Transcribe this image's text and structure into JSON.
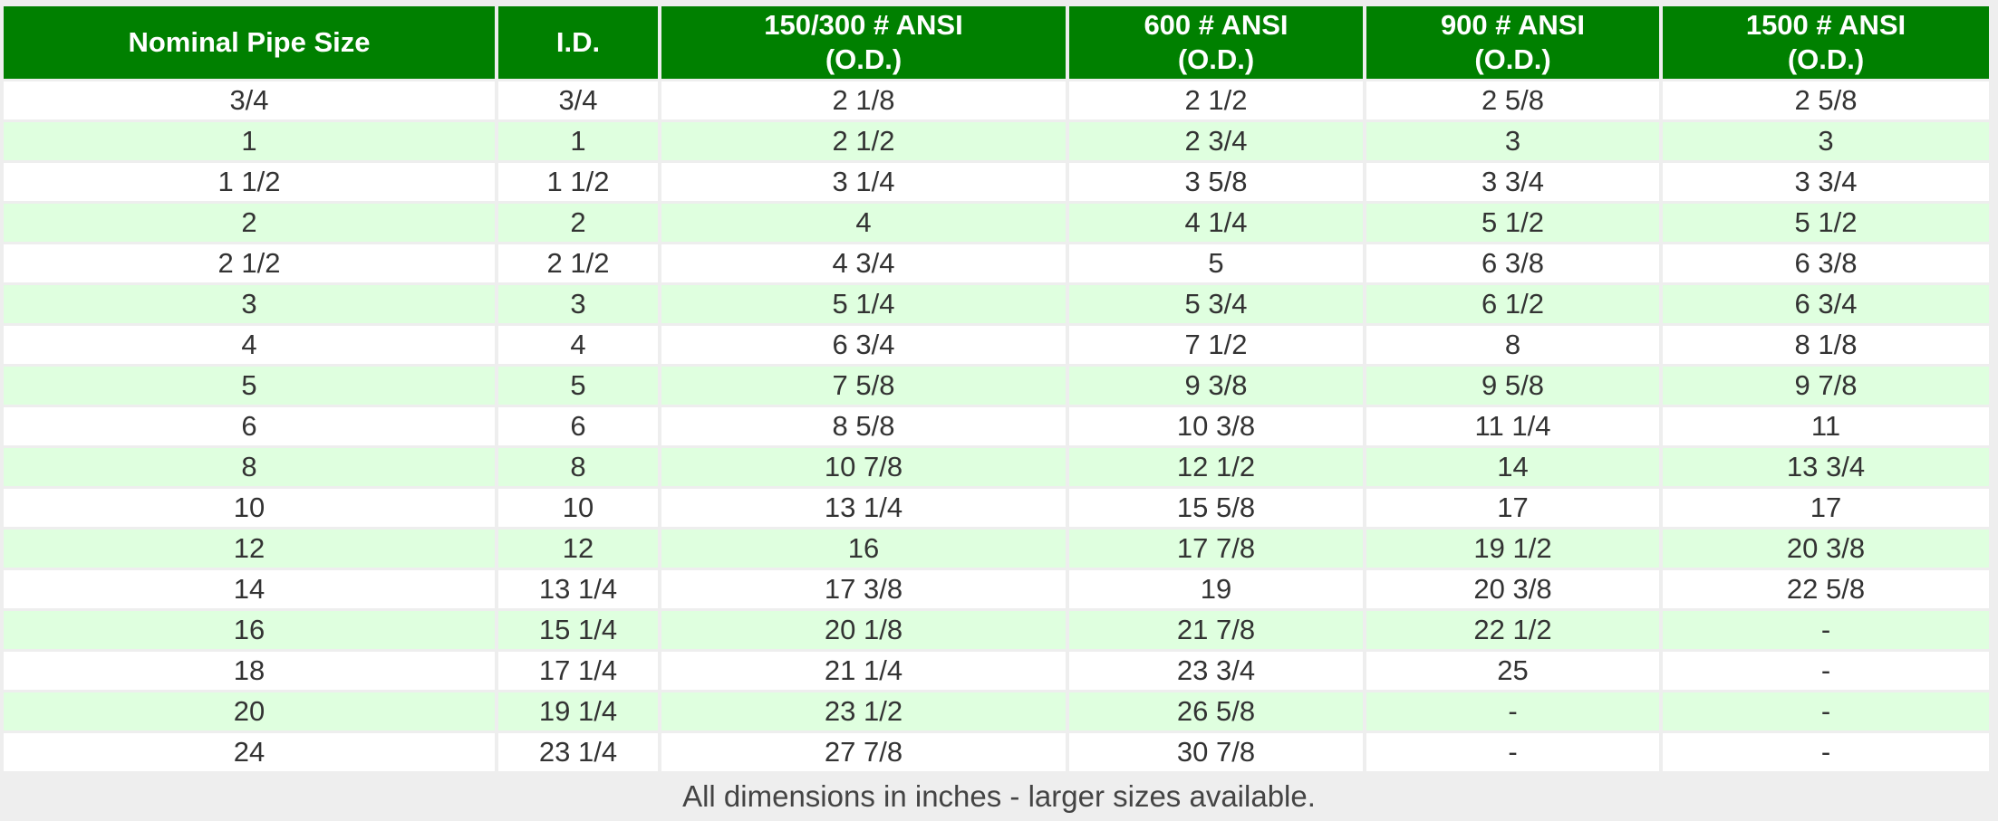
{
  "table": {
    "headers": [
      [
        "Nominal Pipe Size"
      ],
      [
        "I.D."
      ],
      [
        "150/300 # ANSI",
        "(O.D.)"
      ],
      [
        "600 # ANSI",
        "(O.D.)"
      ],
      [
        "900 # ANSI",
        "(O.D.)"
      ],
      [
        "1500 # ANSI",
        "(O.D.)"
      ]
    ],
    "rows": [
      [
        "3/4",
        "3/4",
        "2 1/8",
        "2 1/2",
        "2 5/8",
        "2 5/8"
      ],
      [
        "1",
        "1",
        "2 1/2",
        "2 3/4",
        "3",
        "3"
      ],
      [
        "1 1/2",
        "1 1/2",
        "3 1/4",
        "3 5/8",
        "3 3/4",
        "3 3/4"
      ],
      [
        "2",
        "2",
        "4",
        "4 1/4",
        "5 1/2",
        "5 1/2"
      ],
      [
        "2 1/2",
        "2 1/2",
        "4 3/4",
        "5",
        "6 3/8",
        "6 3/8"
      ],
      [
        "3",
        "3",
        "5 1/4",
        "5 3/4",
        "6 1/2",
        "6 3/4"
      ],
      [
        "4",
        "4",
        "6 3/4",
        "7 1/2",
        "8",
        "8 1/8"
      ],
      [
        "5",
        "5",
        "7 5/8",
        "9 3/8",
        "9 5/8",
        "9 7/8"
      ],
      [
        "6",
        "6",
        "8 5/8",
        "10 3/8",
        "11 1/4",
        "11"
      ],
      [
        "8",
        "8",
        "10 7/8",
        "12 1/2",
        "14",
        "13 3/4"
      ],
      [
        "10",
        "10",
        "13 1/4",
        "15 5/8",
        "17",
        "17"
      ],
      [
        "12",
        "12",
        "16",
        "17 7/8",
        "19 1/2",
        "20 3/8"
      ],
      [
        "14",
        "13 1/4",
        "17 3/8",
        "19",
        "20 3/8",
        "22 5/8"
      ],
      [
        "16",
        "15 1/4",
        "20 1/8",
        "21 7/8",
        "22 1/2",
        "-"
      ],
      [
        "18",
        "17 1/4",
        "21 1/4",
        "23 3/4",
        "25",
        "-"
      ],
      [
        "20",
        "19 1/4",
        "23 1/2",
        "26 5/8",
        "-",
        "-"
      ],
      [
        "24",
        "23 1/4",
        "27 7/8",
        "30 7/8",
        "-",
        "-"
      ]
    ],
    "footnote": "All dimensions in inches - larger sizes available."
  }
}
